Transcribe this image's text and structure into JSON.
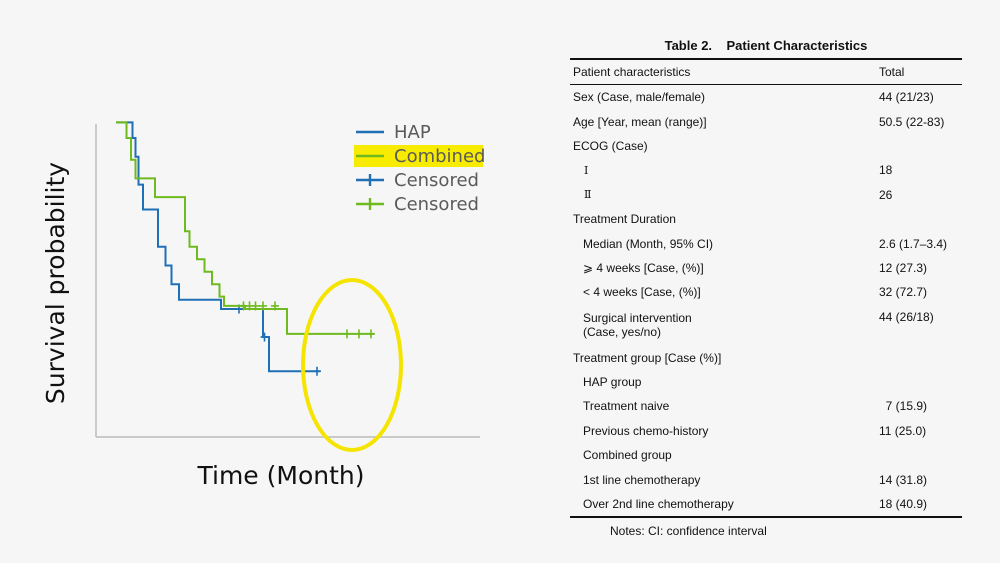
{
  "chart_data": {
    "type": "line",
    "subtype": "kaplan-meier step",
    "xlabel": "Time (Month)",
    "ylabel": "Survival probability",
    "xlim": [
      0,
      12
    ],
    "ylim": [
      0,
      1.0
    ],
    "grid": false,
    "legend_position": "top-right",
    "legend": [
      {
        "label": "HAP",
        "color": "#1f6fb5",
        "marker": "line",
        "highlighted": false
      },
      {
        "label": "Combined",
        "color": "#6fba1f",
        "marker": "line",
        "highlighted": true
      },
      {
        "label": "Censored",
        "color": "#1f6fb5",
        "marker": "plus",
        "highlighted": false
      },
      {
        "label": "Censored",
        "color": "#6fba1f",
        "marker": "plus",
        "highlighted": false
      }
    ],
    "series": [
      {
        "color": "#1f6fb5",
        "steps": [
          [
            0,
            0.96
          ],
          [
            0.55,
            0.96
          ],
          [
            0.55,
            0.91
          ],
          [
            0.65,
            0.91
          ],
          [
            0.65,
            0.85
          ],
          [
            0.75,
            0.85
          ],
          [
            0.75,
            0.76
          ],
          [
            0.9,
            0.76
          ],
          [
            0.9,
            0.68
          ],
          [
            1.4,
            0.68
          ],
          [
            1.4,
            0.56
          ],
          [
            1.65,
            0.56
          ],
          [
            1.65,
            0.5
          ],
          [
            1.85,
            0.5
          ],
          [
            1.85,
            0.44
          ],
          [
            2.1,
            0.44
          ],
          [
            2.1,
            0.39
          ],
          [
            3.5,
            0.39
          ],
          [
            3.5,
            0.36
          ],
          [
            4.9,
            0.36
          ],
          [
            4.9,
            0.27
          ],
          [
            5.1,
            0.27
          ],
          [
            5.1,
            0.16
          ],
          [
            6.8,
            0.16
          ]
        ],
        "censored": [
          [
            4.1,
            0.36
          ],
          [
            4.95,
            0.27
          ],
          [
            6.7,
            0.16
          ]
        ]
      },
      {
        "color": "#6fba1f",
        "steps": [
          [
            0,
            0.96
          ],
          [
            0.35,
            0.96
          ],
          [
            0.35,
            0.91
          ],
          [
            0.5,
            0.91
          ],
          [
            0.5,
            0.84
          ],
          [
            0.65,
            0.84
          ],
          [
            0.65,
            0.78
          ],
          [
            1.3,
            0.78
          ],
          [
            1.3,
            0.72
          ],
          [
            2.3,
            0.72
          ],
          [
            2.3,
            0.61
          ],
          [
            2.45,
            0.61
          ],
          [
            2.45,
            0.56
          ],
          [
            2.7,
            0.56
          ],
          [
            2.7,
            0.52
          ],
          [
            2.95,
            0.52
          ],
          [
            2.95,
            0.48
          ],
          [
            3.2,
            0.48
          ],
          [
            3.2,
            0.44
          ],
          [
            3.45,
            0.44
          ],
          [
            3.45,
            0.4
          ],
          [
            3.6,
            0.4
          ],
          [
            3.6,
            0.37
          ],
          [
            4.3,
            0.37
          ],
          [
            4.3,
            0.36
          ],
          [
            5.7,
            0.36
          ],
          [
            5.7,
            0.28
          ],
          [
            8.6,
            0.28
          ]
        ],
        "censored": [
          [
            4.25,
            0.37
          ],
          [
            4.45,
            0.37
          ],
          [
            4.65,
            0.37
          ],
          [
            4.9,
            0.37
          ],
          [
            5.3,
            0.37
          ],
          [
            7.7,
            0.28
          ],
          [
            8.1,
            0.28
          ],
          [
            8.5,
            0.28
          ]
        ]
      }
    ],
    "annotations": [
      {
        "type": "ellipse",
        "color": "#f5e400",
        "target": "censored tail region"
      }
    ]
  },
  "table": {
    "caption": "Table 2.    Patient Characteristics",
    "headers": [
      "Patient characteristics",
      "Total"
    ],
    "rows": [
      {
        "label": "Sex (Case, male/female)",
        "value": "44 (21/23)"
      },
      {
        "label": "Age [Year, mean (range)]",
        "value": "50.5 (22-83)"
      },
      {
        "label": "ECOG (Case)",
        "value": ""
      },
      {
        "label": "Ⅰ",
        "value": "18"
      },
      {
        "label": "Ⅱ",
        "value": "26"
      },
      {
        "label": "Treatment Duration",
        "value": ""
      },
      {
        "label": "Median (Month, 95% CI)",
        "value": "2.6 (1.7–3.4)"
      },
      {
        "label": "⩾ 4 weeks [Case, (%)]",
        "value": "12 (27.3)"
      },
      {
        "label": "< 4 weeks [Case, (%)]",
        "value": "32 (72.7)"
      },
      {
        "label": "Surgical intervention",
        "label2": "(Case, yes/no)",
        "value": "44 (26/18)"
      },
      {
        "label": "Treatment group [Case (%)]",
        "value": ""
      },
      {
        "label": "HAP group",
        "value": ""
      },
      {
        "label": "Treatment naive",
        "value": "  7 (15.9)"
      },
      {
        "label": "Previous chemo-history",
        "value": "11 (25.0)"
      },
      {
        "label": "Combined group",
        "value": ""
      },
      {
        "label": "1st line chemotherapy",
        "value": "14 (31.8)"
      },
      {
        "label": "Over 2nd line chemotherapy",
        "value": "18 (40.9)"
      }
    ],
    "notes": "Notes: CI: confidence interval"
  }
}
